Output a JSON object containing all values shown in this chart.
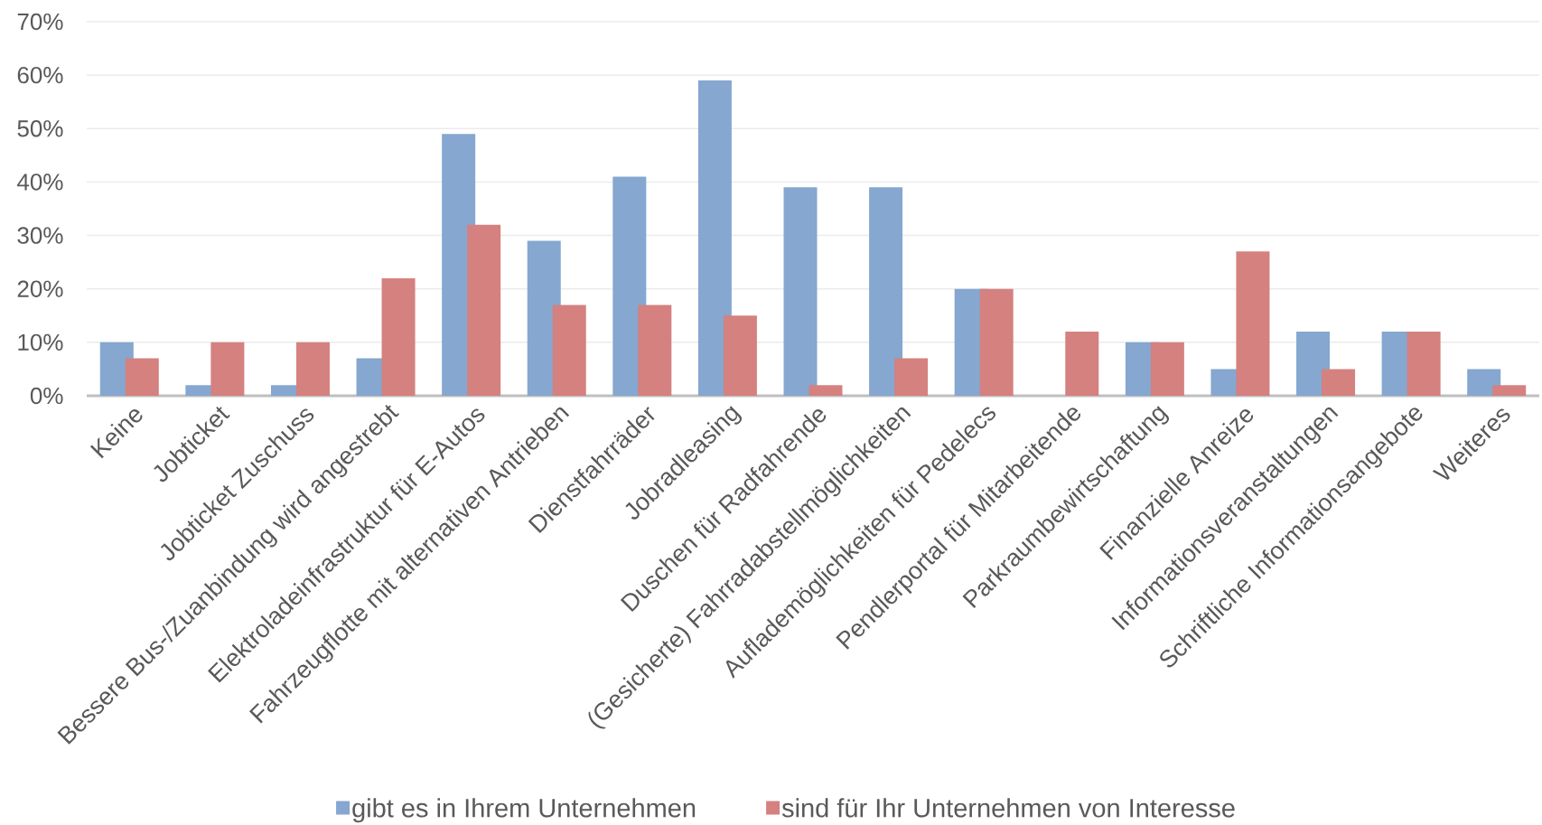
{
  "chart_data": {
    "type": "bar",
    "categories": [
      "Keine",
      "Jobticket",
      "Jobticket Zuschuss",
      "Bessere Bus-/Zuanbindung wird angestrebt",
      "Elektroladeinfrastruktur für E-Autos",
      "Fahrzeugflotte mit alternativen Antrieben",
      "Dienstfahrräder",
      "Jobradleasing",
      "Duschen für Radfahrende",
      "(Gesicherte) Fahrradabstellmöglichkeiten",
      "Auflademöglichkeiten für Pedelecs",
      "Pendlerportal für Mitarbeitende",
      "Parkraumbewirtschaftung",
      "Finanzielle Anreize",
      "Informationsveranstaltungen",
      "Schriftliche Informationsangebote",
      "Weiteres"
    ],
    "series": [
      {
        "name": "gibt es in Ihrem Unternehmen",
        "color": "#85a7d0",
        "values": [
          10,
          2,
          2,
          7,
          49,
          29,
          41,
          59,
          39,
          39,
          20,
          null,
          10,
          5,
          12,
          12,
          5
        ]
      },
      {
        "name": "sind für Ihr Unternehmen von Interesse",
        "color": "#d48180",
        "values": [
          7,
          10,
          10,
          22,
          32,
          17,
          17,
          15,
          2,
          7,
          20,
          12,
          10,
          27,
          5,
          12,
          2
        ]
      }
    ],
    "ylim": [
      0,
      70
    ],
    "yticks": [
      {
        "value": 0,
        "label": "0%"
      },
      {
        "value": 10,
        "label": "10%"
      },
      {
        "value": 20,
        "label": "20%"
      },
      {
        "value": 30,
        "label": "30%"
      },
      {
        "value": 40,
        "label": "40%"
      },
      {
        "value": 50,
        "label": "50%"
      },
      {
        "value": 60,
        "label": "60%"
      },
      {
        "value": 70,
        "label": "70%"
      }
    ],
    "grid": "y",
    "legend": "bottom"
  }
}
